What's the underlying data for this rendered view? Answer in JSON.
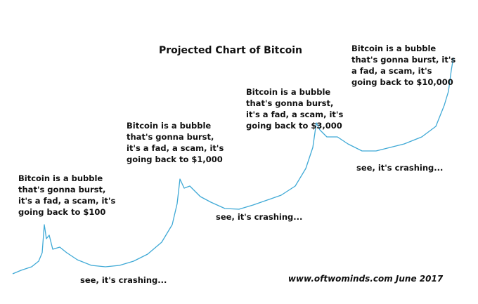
{
  "chart_data": {
    "type": "line",
    "title": "Projected Chart of Bitcoin",
    "footer": "www.oftwominds.com  June 2017",
    "color": "#3fa9d6",
    "xlim": [
      0,
      627
    ],
    "ylim": [
      0,
      360
    ],
    "x": [
      0,
      12,
      27,
      37,
      42,
      45,
      48,
      52,
      57,
      67,
      77,
      92,
      112,
      132,
      152,
      172,
      192,
      212,
      227,
      234,
      238,
      244,
      252,
      267,
      282,
      302,
      322,
      342,
      362,
      382,
      402,
      417,
      427,
      432,
      437,
      447,
      462,
      477,
      497,
      517,
      537,
      557,
      582,
      602,
      614,
      620,
      624,
      627
    ],
    "values": [
      30,
      35,
      40,
      48,
      60,
      100,
      80,
      85,
      65,
      68,
      60,
      50,
      42,
      40,
      42,
      48,
      58,
      75,
      100,
      130,
      165,
      152,
      155,
      140,
      132,
      123,
      122,
      128,
      135,
      142,
      155,
      180,
      210,
      245,
      235,
      225,
      225,
      215,
      205,
      205,
      210,
      215,
      225,
      240,
      270,
      290,
      320,
      338
    ],
    "annotations": [
      [
        "Bitcoin is a bubble",
        "that's gonna burst,",
        "it's a fad, a scam, it's",
        "going back to $100"
      ],
      [
        "Bitcoin is a bubble",
        "that's gonna burst,",
        "it's a fad, a scam, it's",
        "going back to $1,000"
      ],
      [
        "Bitcoin is a bubble",
        "that's gonna burst,",
        "it's a fad, a scam, it's",
        "going back to $3,000"
      ],
      [
        "Bitcoin is a bubble",
        "that's gonna burst, it's",
        "a fad, a scam, it's",
        "going back to $10,000"
      ],
      [
        "see, it's crashing..."
      ],
      [
        "see, it's crashing..."
      ],
      [
        "see, it's crashing..."
      ]
    ]
  }
}
